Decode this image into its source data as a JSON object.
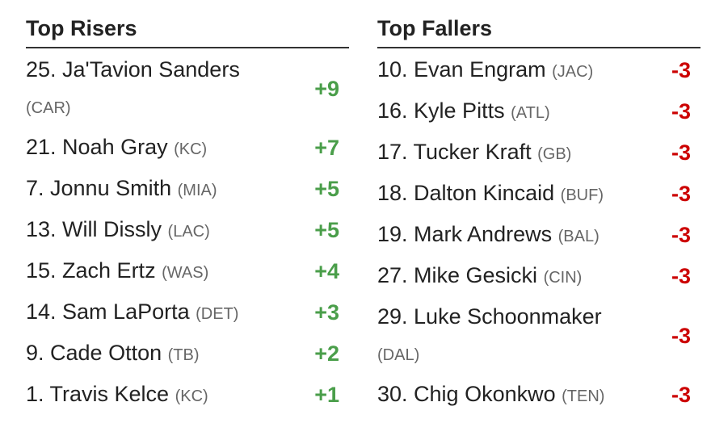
{
  "risers": {
    "title": "Top Risers",
    "rows": [
      {
        "player": "25. Ja'Tavion Sanders",
        "team": "(CAR)",
        "change": "+9"
      },
      {
        "player": "21. Noah Gray",
        "team": "(KC)",
        "change": "+7"
      },
      {
        "player": "7. Jonnu Smith",
        "team": "(MIA)",
        "change": "+5"
      },
      {
        "player": "13. Will Dissly",
        "team": "(LAC)",
        "change": "+5"
      },
      {
        "player": "15. Zach Ertz",
        "team": "(WAS)",
        "change": "+4"
      },
      {
        "player": "14. Sam LaPorta",
        "team": "(DET)",
        "change": "+3"
      },
      {
        "player": "9. Cade Otton",
        "team": "(TB)",
        "change": "+2"
      },
      {
        "player": "1. Travis Kelce",
        "team": "(KC)",
        "change": "+1"
      }
    ]
  },
  "fallers": {
    "title": "Top Fallers",
    "rows": [
      {
        "player": "10. Evan Engram",
        "team": "(JAC)",
        "change": "-3"
      },
      {
        "player": "16. Kyle Pitts",
        "team": "(ATL)",
        "change": "-3"
      },
      {
        "player": "17. Tucker Kraft",
        "team": "(GB)",
        "change": "-3"
      },
      {
        "player": "18. Dalton Kincaid",
        "team": "(BUF)",
        "change": "-3"
      },
      {
        "player": "19. Mark Andrews",
        "team": "(BAL)",
        "change": "-3"
      },
      {
        "player": "27. Mike Gesicki",
        "team": "(CIN)",
        "change": "-3"
      },
      {
        "player": "29. Luke Schoonmaker",
        "team": "(DAL)",
        "change": "-3"
      },
      {
        "player": "30. Chig Okonkwo",
        "team": "(TEN)",
        "change": "-3"
      }
    ]
  }
}
